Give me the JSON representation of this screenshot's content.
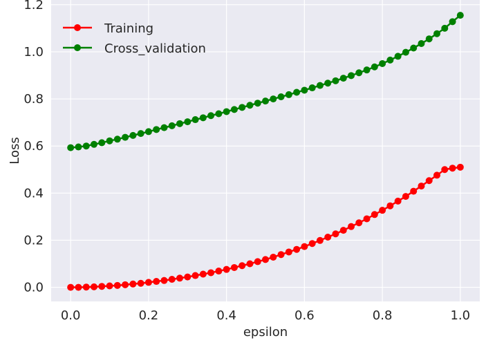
{
  "chart_data": {
    "type": "line",
    "title": "",
    "xlabel": "epsilon",
    "ylabel": "Loss",
    "xlim": [
      -0.05,
      1.05
    ],
    "ylim": [
      -0.06,
      1.22
    ],
    "xticks": [
      0.0,
      0.2,
      0.4,
      0.6,
      0.8,
      1.0
    ],
    "xtick_labels": [
      "0.0",
      "0.2",
      "0.4",
      "0.6",
      "0.8",
      "1.0"
    ],
    "yticks": [
      0.0,
      0.2,
      0.4,
      0.6,
      0.8,
      1.0,
      1.2
    ],
    "ytick_labels": [
      "0.0",
      "0.2",
      "0.4",
      "0.6",
      "0.8",
      "1.0",
      "1.2"
    ],
    "grid": true,
    "legend_position": "top-left",
    "x": [
      0.0,
      0.02,
      0.04,
      0.06,
      0.08,
      0.1,
      0.12,
      0.14,
      0.16,
      0.18,
      0.2,
      0.22,
      0.24,
      0.26,
      0.28,
      0.3,
      0.32,
      0.34,
      0.36,
      0.38,
      0.4,
      0.42,
      0.44,
      0.46,
      0.48,
      0.5,
      0.52,
      0.54,
      0.56,
      0.58,
      0.6,
      0.62,
      0.64,
      0.66,
      0.68,
      0.7,
      0.72,
      0.74,
      0.76,
      0.78,
      0.8,
      0.82,
      0.84,
      0.86,
      0.88,
      0.9,
      0.92,
      0.94,
      0.96,
      0.98,
      1.0
    ],
    "series": [
      {
        "name": "Training",
        "color": "#ff0000",
        "values": [
          0.0,
          0.0,
          0.001,
          0.002,
          0.004,
          0.006,
          0.008,
          0.011,
          0.014,
          0.017,
          0.021,
          0.025,
          0.029,
          0.034,
          0.039,
          0.044,
          0.05,
          0.056,
          0.062,
          0.069,
          0.076,
          0.084,
          0.092,
          0.1,
          0.109,
          0.118,
          0.128,
          0.139,
          0.15,
          0.161,
          0.173,
          0.186,
          0.199,
          0.213,
          0.227,
          0.242,
          0.258,
          0.274,
          0.291,
          0.309,
          0.327,
          0.346,
          0.366,
          0.386,
          0.408,
          0.43,
          0.453,
          0.476,
          0.5,
          0.506,
          0.51
        ]
      },
      {
        "name": "Cross_validation",
        "color": "#008000",
        "values": [
          0.593,
          0.596,
          0.6,
          0.607,
          0.614,
          0.622,
          0.629,
          0.637,
          0.645,
          0.653,
          0.661,
          0.67,
          0.678,
          0.686,
          0.695,
          0.703,
          0.712,
          0.72,
          0.729,
          0.737,
          0.746,
          0.755,
          0.764,
          0.773,
          0.782,
          0.791,
          0.8,
          0.809,
          0.818,
          0.828,
          0.837,
          0.847,
          0.857,
          0.867,
          0.877,
          0.888,
          0.899,
          0.911,
          0.923,
          0.936,
          0.95,
          0.965,
          0.981,
          0.998,
          1.016,
          1.035,
          1.055,
          1.077,
          1.1,
          1.128,
          1.155
        ]
      }
    ]
  }
}
